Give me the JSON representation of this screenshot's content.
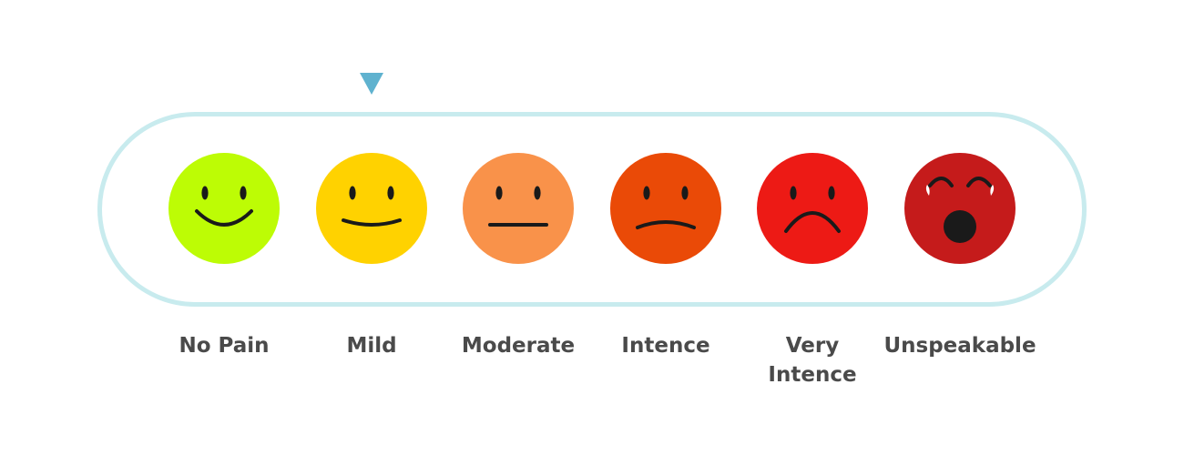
{
  "scale": {
    "selected_index": 1,
    "indicator_color": "#5fb2cf",
    "track_color": "#c8ebee",
    "levels": [
      {
        "label": "No Pain",
        "color": "#bdfc05",
        "face": "big-smile"
      },
      {
        "label": "Mild",
        "color": "#ffd200",
        "face": "smile"
      },
      {
        "label": "Moderate",
        "color": "#f9924a",
        "face": "neutral"
      },
      {
        "label": "Intence",
        "color": "#ea4a07",
        "face": "slight-frown"
      },
      {
        "label": "Very\nIntence",
        "color": "#ed1a15",
        "face": "frown"
      },
      {
        "label": "Unspeakable",
        "color": "#c51b1b",
        "face": "crying"
      }
    ]
  }
}
